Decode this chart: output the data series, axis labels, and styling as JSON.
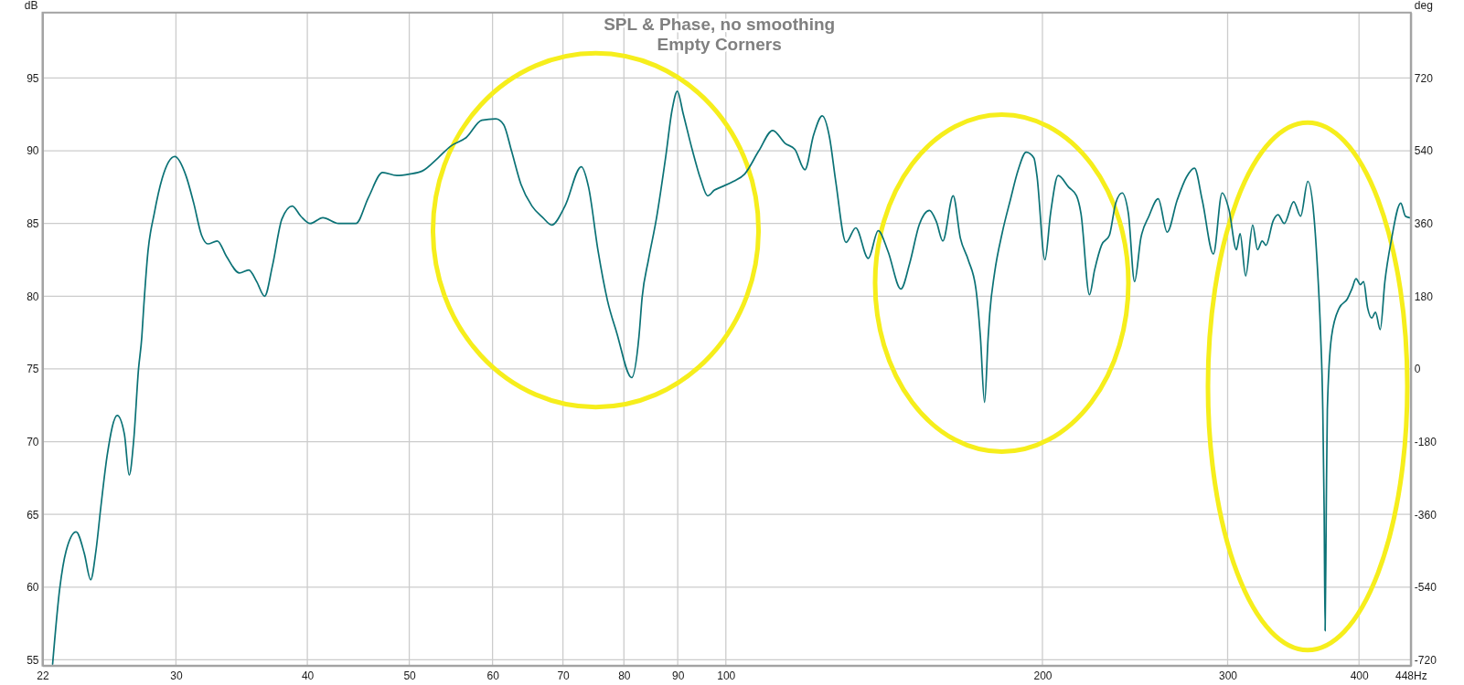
{
  "chart_data": {
    "type": "line",
    "title": "SPL & Phase, no smoothing",
    "subtitle": "Empty Corners",
    "ylabel": "dB",
    "y2label": "deg",
    "log": "x",
    "grid": true,
    "xlim": [
      22.4,
      448
    ],
    "xticks": [
      {
        "value": 22.4,
        "label": "22"
      },
      30,
      40,
      50,
      60,
      70,
      80,
      90,
      100,
      200,
      300,
      400,
      {
        "value": 448,
        "label": "448Hz"
      }
    ],
    "ylim": [
      54.6,
      99.5
    ],
    "yticks": [
      55,
      60,
      65,
      70,
      75,
      80,
      85,
      90,
      95
    ],
    "y2lim": [
      -734,
      882
    ],
    "y2ticks": [
      -720,
      -540,
      -360,
      -180,
      0,
      180,
      360,
      540,
      720
    ],
    "x": [
      22.9,
      23.26,
      23.59,
      24.11,
      24.55,
      24.89,
      25.18,
      25.45,
      25.8,
      26.38,
      26.8,
      27.08,
      27.35,
      27.64,
      27.84,
      27.93,
      28.22,
      28.61,
      29.11,
      29.92,
      30.66,
      31.19,
      31.73,
      32.17,
      32.84,
      33.53,
      34.47,
      35.19,
      35.8,
      36.43,
      37.06,
      37.83,
      38.7,
      39.43,
      40.25,
      41.38,
      42.83,
      43.72,
      44.49,
      45.73,
      47.17,
      48.66,
      50.02,
      51.41,
      53.23,
      54.7,
      56.62,
      58.61,
      60.43,
      61.48,
      62.54,
      63.85,
      65.41,
      67.0,
      68.3,
      70.31,
      72.87,
      74.04,
      75.6,
      77.17,
      78.74,
      81.37,
      82.67,
      83.25,
      84.41,
      85.88,
      87.67,
      88.89,
      89.93,
      91.05,
      92.96,
      94.58,
      96.09,
      97.56,
      98.92,
      101.7,
      104.2,
      107.5,
      110.8,
      113.9,
      116.3,
      118.9,
      121.2,
      123.5,
      125.5,
      127.2,
      130.1,
      132.9,
      136.6,
      139.6,
      142.6,
      146.7,
      149.6,
      152.7,
      156.2,
      158.6,
      160.8,
      164.5,
      167.1,
      170.0,
      172.9,
      174.6,
      176.2,
      177.6,
      178.2,
      180.1,
      183.2,
      186.4,
      189.7,
      193.0,
      196.3,
      197.6,
      201.1,
      203.6,
      207.0,
      211.8,
      215.5,
      217.6,
      221.7,
      224.2,
      227.6,
      231.6,
      234.8,
      238.1,
      241.4,
      244.7,
      248.1,
      252.5,
      257.7,
      262.8,
      268.6,
      274.2,
      279.0,
      283.8,
      290.8,
      296.4,
      301.0,
      305.8,
      308.3,
      312.1,
      316.9,
      320.3,
      323.6,
      326.3,
      331.5,
      335.0,
      339.6,
      346.7,
      352.0,
      357.6,
      362.6,
      365.1,
      367.6,
      369.5,
      370.6,
      371.4,
      372.3,
      373.2,
      376.6,
      383.1,
      389.8,
      393.8,
      397.4,
      401.2,
      404.0,
      407.6,
      411.3,
      414.7,
      419.0,
      423.3,
      429.2,
      438.3,
      442.8,
      446.8
    ],
    "series": [
      {
        "color": "#0b7276",
        "values": [
          54.7,
          59.9,
          62.5,
          63.8,
          62.3,
          60.5,
          62.5,
          65.5,
          69.0,
          71.8,
          70.5,
          67.7,
          70.1,
          75.0,
          77.2,
          78.8,
          83.1,
          85.7,
          88.1,
          89.6,
          88.3,
          86.4,
          84.2,
          83.6,
          83.8,
          82.7,
          81.6,
          81.8,
          81.0,
          80.0,
          82.1,
          85.3,
          86.2,
          85.5,
          85.0,
          85.4,
          85.0,
          85.0,
          85.0,
          86.8,
          88.5,
          88.3,
          88.4,
          88.6,
          89.5,
          90.3,
          90.9,
          92.1,
          92.2,
          91.8,
          90.0,
          87.7,
          86.2,
          85.4,
          84.9,
          86.2,
          88.9,
          87.5,
          83.1,
          79.7,
          77.5,
          74.4,
          77.2,
          79.9,
          82.5,
          85.3,
          89.6,
          92.8,
          94.1,
          92.6,
          90.0,
          88.1,
          86.9,
          87.3,
          87.5,
          87.9,
          88.4,
          90.0,
          91.4,
          90.5,
          90.1,
          88.7,
          91.1,
          92.4,
          90.9,
          87.9,
          83.7,
          84.7,
          82.6,
          84.5,
          83.1,
          80.5,
          82.3,
          84.9,
          85.9,
          85.1,
          83.8,
          86.9,
          84.0,
          82.5,
          80.5,
          77.2,
          72.7,
          77.2,
          78.8,
          81.6,
          84.4,
          86.6,
          88.7,
          89.9,
          89.5,
          88.3,
          82.5,
          85.7,
          88.3,
          87.5,
          86.9,
          85.7,
          80.1,
          81.8,
          83.5,
          84.2,
          86.4,
          87.1,
          85.7,
          81.0,
          84.0,
          85.5,
          86.7,
          84.4,
          86.6,
          88.2,
          88.8,
          86.6,
          82.9,
          87.1,
          85.9,
          83.2,
          84.3,
          81.4,
          84.9,
          83.2,
          83.8,
          83.5,
          85.2,
          85.6,
          85.0,
          86.5,
          85.5,
          87.9,
          85.3,
          82.1,
          77.7,
          72.2,
          65.3,
          57.0,
          65.3,
          72.2,
          77.2,
          79.2,
          79.8,
          80.5,
          81.2,
          80.8,
          81.0,
          79.2,
          78.5,
          78.9,
          77.7,
          81.0,
          83.8,
          86.4,
          85.5,
          85.4
        ]
      }
    ]
  }
}
